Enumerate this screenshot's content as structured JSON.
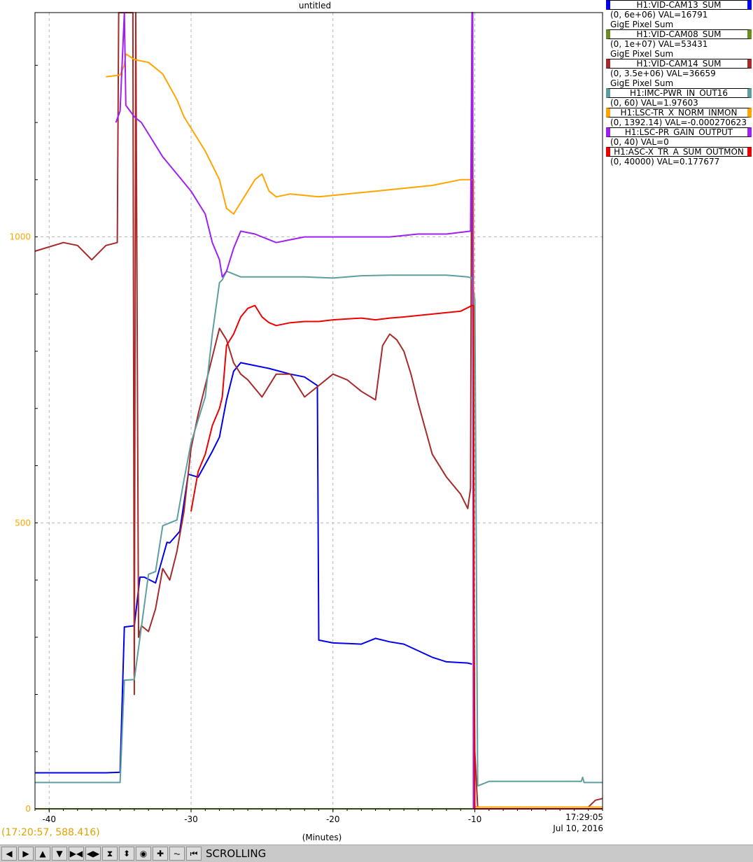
{
  "window": {
    "title": "untitled"
  },
  "legend": [
    {
      "name": "H1:VID-CAM13_SUM",
      "range": "(0, 6e+06) VAL=16791",
      "note": "GigE Pixel Sum",
      "color": "#0000ee"
    },
    {
      "name": "H1:VID-CAM08_SUM",
      "range": "(0, 1e+07) VAL=53431",
      "note": "GigE Pixel Sum",
      "color": "#6b8e23"
    },
    {
      "name": "H1:VID-CAM14_SUM",
      "range": "(0, 3.5e+06) VAL=36659",
      "note": "GigE Pixel Sum",
      "color": "#a52a2a"
    },
    {
      "name": "H1:IMC-PWR_IN_OUT16",
      "range": "(0, 60) VAL=1.97603",
      "note": "",
      "color": "#5f9ea0"
    },
    {
      "name": "H1:LSC-TR_X_NORM_INMON",
      "range": "(0, 1392.14) VAL=-0.000270623",
      "note": "",
      "color": "#ffa500"
    },
    {
      "name": "H1:LSC-PR_GAIN_OUTPUT",
      "range": "(0, 40) VAL=0",
      "note": "",
      "color": "#a020f0"
    },
    {
      "name": "H1:ASC-X_TR_A_SUM_OUTMON",
      "range": "(0, 40000) VAL=0.177677",
      "note": "",
      "color": "#ee0000"
    }
  ],
  "status": {
    "cursor_readout": "(17:20:57, 588.416)",
    "timestamp_time": "17:29:05",
    "timestamp_date": "Jul 10, 2016",
    "x_units": "(Minutes)",
    "mode": "SCROLLING"
  },
  "toolbar": {
    "buttons": [
      {
        "name": "scroll-left",
        "glyph": "◀"
      },
      {
        "name": "scroll-right",
        "glyph": "▶"
      },
      {
        "name": "scroll-up",
        "glyph": "▲"
      },
      {
        "name": "scroll-down",
        "glyph": "▼"
      },
      {
        "name": "zoom-in-x",
        "glyph": "▶◀"
      },
      {
        "name": "zoom-out-x",
        "glyph": "◀▶"
      },
      {
        "name": "zoom-in-y",
        "glyph": "⧗"
      },
      {
        "name": "zoom-out-y",
        "glyph": "⬍"
      },
      {
        "name": "reset",
        "glyph": "◉"
      },
      {
        "name": "add",
        "glyph": "✚"
      },
      {
        "name": "autoscale",
        "glyph": "⏦"
      },
      {
        "name": "jump-start",
        "glyph": "⏮"
      }
    ]
  },
  "chart_data": {
    "type": "line",
    "title": "untitled",
    "xlabel": "(Minutes)",
    "ylabel": "",
    "xlim": [
      -41,
      -1
    ],
    "ylim": [
      0,
      1392.14
    ],
    "x_ticks": [
      -40,
      -30,
      -20,
      -10
    ],
    "y_ticks": [
      0,
      500,
      1000
    ],
    "y_tick_color": "#ffa500",
    "grid": true,
    "legend_position": "top-right",
    "series": [
      {
        "name": "H1:VID-CAM13_SUM",
        "color": "#0000ee",
        "x": [
          -41,
          -36,
          -35,
          -34.7,
          -34,
          -33.6,
          -33.3,
          -32.5,
          -31.7,
          -31.5,
          -30.8,
          -30.2,
          -29.5,
          -28.5,
          -28,
          -27.5,
          -27,
          -26.5,
          -25.5,
          -24.5,
          -23,
          -22,
          -21.1,
          -21,
          -20,
          -18,
          -17,
          -16,
          -15,
          -13,
          -12,
          -10.5,
          -10.2
        ],
        "y": [
          63,
          63,
          64,
          318,
          320,
          405,
          405,
          395,
          466,
          465,
          485,
          585,
          580,
          625,
          650,
          715,
          765,
          780,
          775,
          770,
          760,
          755,
          740,
          295,
          290,
          288,
          298,
          292,
          288,
          265,
          257,
          255,
          253
        ]
      },
      {
        "name": "H1:VID-CAM08_SUM",
        "color": "#6b8e23",
        "x": [
          -41,
          -1
        ],
        "y": [
          0,
          0
        ]
      },
      {
        "name": "H1:VID-CAM14_SUM",
        "color": "#a52a2a",
        "x": [
          -41,
          -39,
          -38,
          -37,
          -36,
          -35.2,
          -35.1,
          -35.05,
          -35,
          -34.5,
          -34.1,
          -34,
          -33.9,
          -33.7,
          -33.5,
          -33,
          -32.5,
          -32,
          -31.5,
          -31,
          -30.5,
          -30,
          -29.5,
          -29,
          -28.5,
          -28,
          -27.5,
          -27,
          -26.5,
          -26,
          -25,
          -24,
          -23,
          -22,
          -21,
          -20,
          -19,
          -18,
          -17,
          -16.5,
          -16,
          -15.5,
          -15,
          -14.5,
          -14,
          -13,
          -12,
          -11,
          -10.5,
          -10.3,
          -10.2,
          -10.1,
          -10,
          -9.8,
          -9,
          -7,
          -5,
          -3,
          -2,
          -1.5,
          -1
        ],
        "y": [
          975,
          990,
          985,
          960,
          985,
          990,
          1392,
          1392,
          1392,
          1392,
          1392,
          200,
          1392,
          300,
          320,
          310,
          350,
          420,
          400,
          450,
          520,
          630,
          690,
          740,
          790,
          840,
          820,
          780,
          760,
          750,
          720,
          760,
          760,
          720,
          740,
          760,
          750,
          730,
          715,
          810,
          830,
          820,
          800,
          760,
          710,
          620,
          580,
          550,
          525,
          560,
          1392,
          500,
          100,
          3,
          3,
          3,
          3,
          3,
          3,
          15,
          18
        ]
      },
      {
        "name": "H1:IMC-PWR_IN_OUT16",
        "color": "#5f9ea0",
        "x": [
          -41,
          -36,
          -35,
          -34.7,
          -34,
          -33,
          -32.5,
          -32,
          -31.5,
          -31,
          -30.5,
          -30,
          -29,
          -28.5,
          -28,
          -27.8,
          -27.5,
          -27,
          -26.5,
          -25.5,
          -24.5,
          -22,
          -20,
          -18,
          -16,
          -14,
          -12,
          -10.5,
          -10.2,
          -10,
          -9.8,
          -9,
          -7,
          -5,
          -3,
          -2.5,
          -2.4,
          -2.3,
          -1
        ],
        "y": [
          46,
          46,
          46,
          225,
          226,
          410,
          415,
          495,
          500,
          505,
          575,
          640,
          720,
          830,
          920,
          925,
          940,
          935,
          930,
          930,
          930,
          930,
          928,
          932,
          933,
          933,
          933,
          930,
          928,
          890,
          40,
          48,
          48,
          48,
          48,
          48,
          55,
          46,
          46
        ]
      },
      {
        "name": "H1:LSC-TR_X_NORM_INMON",
        "color": "#ffa500",
        "x": [
          -36,
          -35,
          -34.7,
          -34.6,
          -34,
          -33,
          -32,
          -31,
          -30.5,
          -29,
          -28,
          -27.5,
          -27,
          -26.5,
          -25.5,
          -25,
          -24.5,
          -24,
          -23,
          -21,
          -19,
          -17,
          -15,
          -13,
          -11,
          -10.2,
          -10.1,
          -10.05,
          -10,
          -9.9,
          -9,
          -7,
          -5,
          -3,
          -1
        ],
        "y": [
          1280,
          1283,
          1300,
          1320,
          1310,
          1305,
          1285,
          1240,
          1210,
          1150,
          1100,
          1050,
          1040,
          1060,
          1100,
          1110,
          1080,
          1070,
          1075,
          1070,
          1075,
          1080,
          1085,
          1090,
          1100,
          1100,
          1100,
          50,
          5,
          3,
          3,
          3,
          3,
          3,
          3
        ]
      },
      {
        "name": "H1:LSC-PR_GAIN_OUTPUT",
        "color": "#a020f0",
        "x": [
          -35.3,
          -35,
          -34.7,
          -34.6,
          -34,
          -33.5,
          -33,
          -32,
          -31,
          -30,
          -29,
          -28.5,
          -28,
          -27.8,
          -27.5,
          -27,
          -26.5,
          -25.5,
          -25,
          -24.5,
          -24,
          -23,
          -22,
          -20,
          -18,
          -16,
          -14,
          -12,
          -10.3,
          -10.2,
          -10.15,
          -10.1
        ],
        "y": [
          1200,
          1220,
          1392,
          1230,
          1210,
          1200,
          1180,
          1140,
          1110,
          1080,
          1040,
          990,
          960,
          930,
          940,
          980,
          1010,
          1005,
          1000,
          995,
          990,
          995,
          1000,
          1000,
          1000,
          1000,
          1005,
          1005,
          1010,
          1392,
          1392,
          0
        ]
      },
      {
        "name": "H1:ASC-X_TR_A_SUM_OUTMON",
        "color": "#ee0000",
        "x": [
          -30,
          -29.5,
          -29,
          -28.5,
          -28,
          -27.8,
          -27.5,
          -27,
          -26.5,
          -26,
          -25.5,
          -25,
          -24.5,
          -24,
          -23,
          -22,
          -21,
          -20,
          -18,
          -17,
          -16,
          -15,
          -13,
          -11,
          -10.2,
          -10.1,
          -10.05,
          -10,
          -9,
          -7,
          -5,
          -3,
          -1
        ],
        "y": [
          520,
          590,
          620,
          670,
          700,
          720,
          810,
          830,
          860,
          875,
          880,
          860,
          850,
          845,
          850,
          852,
          852,
          855,
          858,
          855,
          858,
          860,
          865,
          870,
          880,
          880,
          300,
          0,
          0,
          0,
          0,
          0,
          0
        ]
      }
    ]
  }
}
